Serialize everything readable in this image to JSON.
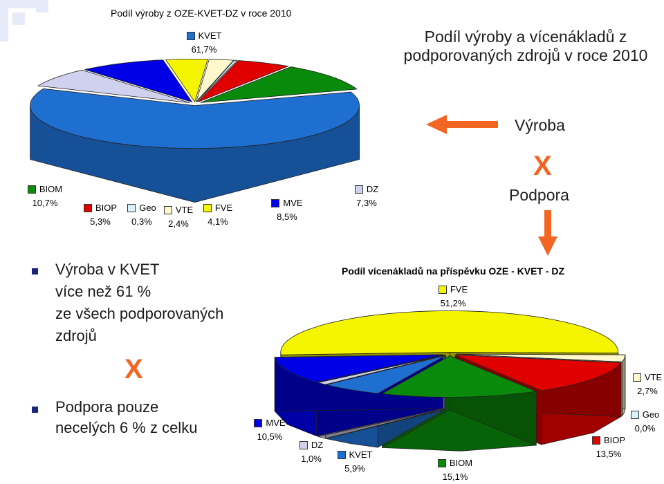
{
  "chart_data": [
    {
      "type": "pie",
      "title": "Podíl výroby z OZE-KVET-DZ v roce 2010",
      "slices": [
        {
          "name": "KVET",
          "label": "61,7%",
          "value": 61.7,
          "color": "#1f6fd1"
        },
        {
          "name": "DZ",
          "label": "7,3%",
          "value": 7.3,
          "color": "#d0d0ef"
        },
        {
          "name": "MVE",
          "label": "8,5%",
          "value": 8.5,
          "color": "#0000e6"
        },
        {
          "name": "FVE",
          "label": "4,1%",
          "value": 4.1,
          "color": "#f5f500"
        },
        {
          "name": "VTE",
          "label": "2,4%",
          "value": 2.4,
          "color": "#fff8cc"
        },
        {
          "name": "Geo",
          "label": "0,3%",
          "value": 0.3,
          "color": "#d6f3fb"
        },
        {
          "name": "BIOP",
          "label": "5,3%",
          "value": 5.3,
          "color": "#e00000"
        },
        {
          "name": "BIOM",
          "label": "10,7%",
          "value": 10.7,
          "color": "#0a8a0a"
        }
      ]
    },
    {
      "type": "pie",
      "title": "Podíl vícenákladů na příspěvku OZE - KVET - DZ",
      "slices": [
        {
          "name": "FVE",
          "label": "51,2%",
          "value": 51.2,
          "color": "#f5f500"
        },
        {
          "name": "VTE",
          "label": "2,7%",
          "value": 2.7,
          "color": "#fff8cc"
        },
        {
          "name": "Geo",
          "label": "0,0%",
          "value": 0.0,
          "color": "#d6f3fb"
        },
        {
          "name": "BIOP",
          "label": "13,5%",
          "value": 13.5,
          "color": "#e00000"
        },
        {
          "name": "BIOM",
          "label": "15,1%",
          "value": 15.1,
          "color": "#0a8a0a"
        },
        {
          "name": "KVET",
          "label": "5,9%",
          "value": 5.9,
          "color": "#1f6fd1"
        },
        {
          "name": "DZ",
          "label": "1,0%",
          "value": 1.0,
          "color": "#d0d0ef"
        },
        {
          "name": "MVE",
          "label": "10,5%",
          "value": 10.5,
          "color": "#0000e6"
        }
      ]
    }
  ],
  "right_panel": {
    "title": "Podíl výroby  a vícenákladů z podporovaných zdrojů v roce 2010",
    "vyroba": "Výroba",
    "x_mark": "X",
    "podpora": "Podpora",
    "arrow_color": "#f26522"
  },
  "bullets": {
    "item1": {
      "line1": "Výroba v KVET",
      "line2": "více než 61 %",
      "line3": "ze všech podporovaných",
      "line4": "zdrojů"
    },
    "x_mark": "X",
    "item2": {
      "line1": "Podpora pouze",
      "line2": "necelých 6 % z celku"
    }
  }
}
